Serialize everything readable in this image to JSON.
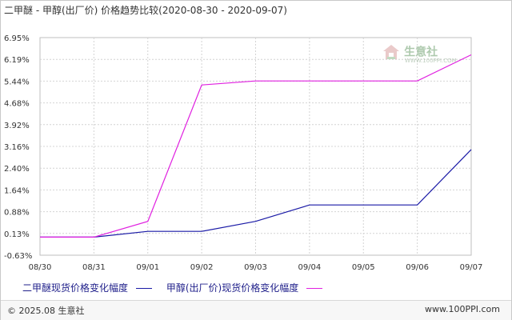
{
  "title": "二甲醚 - 甲醇(出厂价) 价格趋势比较(2020-08-30 - 2020-09-07)",
  "watermark": {
    "text": "生意社",
    "url": "WWW.100PPI.COM"
  },
  "footer": {
    "copyright": "© 2025.08 生意社",
    "url": "www.100PPI.com"
  },
  "chart_data": {
    "type": "line",
    "x": [
      "08/30",
      "08/31",
      "09/01",
      "09/02",
      "09/03",
      "09/04",
      "09/05",
      "09/06",
      "09/07"
    ],
    "y_ticks": [
      "6.95%",
      "6.19%",
      "5.44%",
      "4.68%",
      "3.92%",
      "3.16%",
      "2.40%",
      "1.64%",
      "0.88%",
      "0.13%",
      "-0.63%"
    ],
    "ylim": [
      -0.63,
      6.95
    ],
    "grid": true,
    "legend_position": "bottom-left",
    "series": [
      {
        "name": "二甲醚现货价格变化幅度",
        "color": "#1a1aa6",
        "values": [
          0.0,
          0.0,
          0.2,
          0.2,
          0.55,
          1.12,
          1.12,
          1.12,
          3.05
        ]
      },
      {
        "name": "甲醇(出厂价)现货价格变化幅度",
        "color": "#e020e0",
        "values": [
          0.0,
          0.0,
          0.55,
          5.3,
          5.44,
          5.44,
          5.44,
          5.44,
          6.35
        ]
      }
    ]
  }
}
